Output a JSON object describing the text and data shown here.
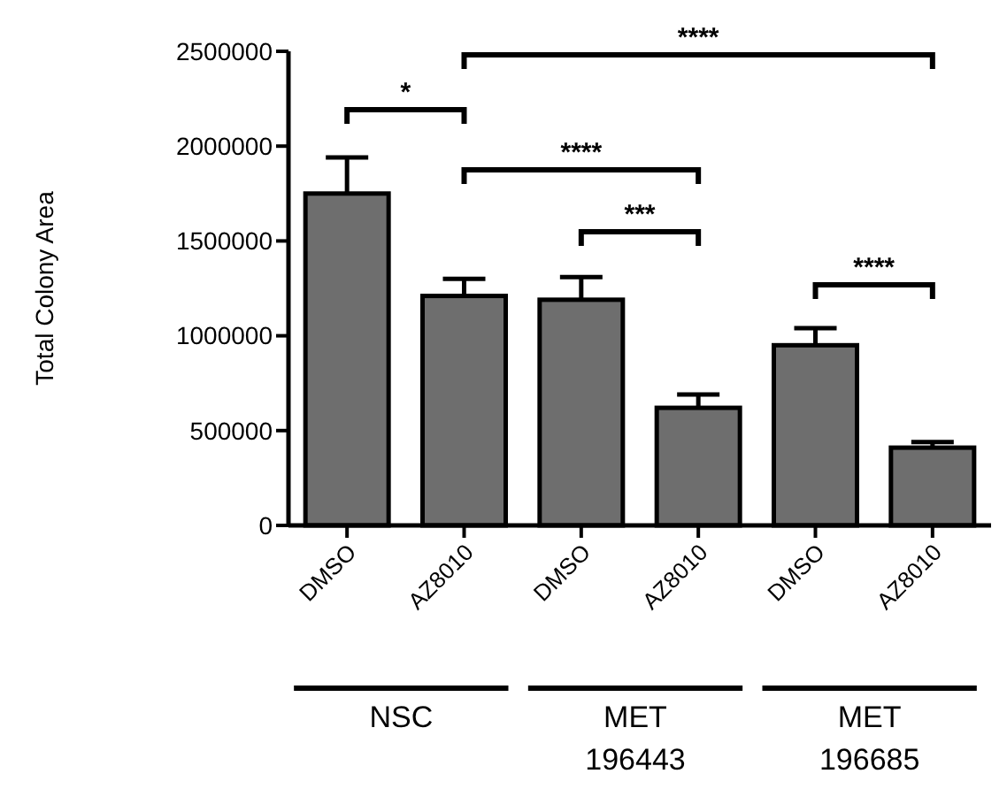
{
  "chart_data": {
    "type": "bar",
    "ylabel": "Total Colony Area",
    "categories": [
      "DMSO",
      "AZ8010",
      "DMSO",
      "AZ8010",
      "DMSO",
      "AZ8010"
    ],
    "values": [
      1750000,
      1210000,
      1190000,
      620000,
      950000,
      410000
    ],
    "errors": [
      [
        1750000,
        1940000
      ],
      [
        1210000,
        1300000
      ],
      [
        1190000,
        1310000
      ],
      [
        620000,
        690000
      ],
      [
        950000,
        1040000
      ],
      [
        410000,
        440000
      ]
    ],
    "color": "#6e6e6e",
    "ylim": [
      0,
      2500000
    ],
    "yticks": [
      0,
      500000,
      1000000,
      1500000,
      2000000,
      2500000
    ],
    "grid": false,
    "annotations": [
      "****",
      "*",
      "****",
      "***",
      "****",
      "NSC",
      "MET\n196443",
      "MET\n196685"
    ]
  }
}
